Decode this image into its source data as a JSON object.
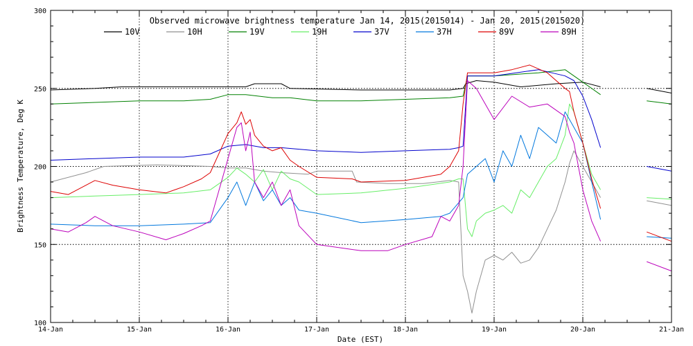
{
  "chart_data": {
    "type": "line",
    "title": "Observed microwave brightness temperature Jan 14, 2015(2015014) - Jan 20, 2015(2015020)",
    "xlabel": "Date (EST)",
    "ylabel": "Brightness Temperature, Deg K",
    "xlim": [
      14,
      21
    ],
    "ylim": [
      100,
      300
    ],
    "x_ticks": [
      {
        "value": 14,
        "label": "14-Jan"
      },
      {
        "value": 15,
        "label": "15-Jan"
      },
      {
        "value": 16,
        "label": "16-Jan"
      },
      {
        "value": 17,
        "label": "17-Jan"
      },
      {
        "value": 18,
        "label": "18-Jan"
      },
      {
        "value": 19,
        "label": "19-Jan"
      },
      {
        "value": 20,
        "label": "20-Jan"
      },
      {
        "value": 21,
        "label": "21-Jan"
      }
    ],
    "y_ticks": [
      {
        "value": 100,
        "label": "100"
      },
      {
        "value": 150,
        "label": "150"
      },
      {
        "value": 200,
        "label": "200"
      },
      {
        "value": 250,
        "label": "250"
      },
      {
        "value": 300,
        "label": "300"
      }
    ],
    "grid": true,
    "legend_position": "top",
    "series": [
      {
        "name": "10V",
        "color": "#000000",
        "points": [
          [
            14.0,
            249
          ],
          [
            14.5,
            250
          ],
          [
            14.8,
            251
          ],
          [
            15.2,
            251
          ],
          [
            15.8,
            251
          ],
          [
            16.2,
            251
          ],
          [
            16.3,
            253
          ],
          [
            16.6,
            253
          ],
          [
            16.7,
            250
          ],
          [
            17.5,
            249
          ],
          [
            18.5,
            249
          ],
          [
            18.65,
            250
          ],
          [
            18.68,
            253
          ],
          [
            18.8,
            255
          ],
          [
            19.0,
            254
          ],
          [
            19.3,
            251
          ],
          [
            19.7,
            253
          ],
          [
            20.0,
            254
          ],
          [
            20.2,
            251
          ],
          null,
          [
            20.72,
            250
          ],
          [
            21.0,
            247
          ]
        ]
      },
      {
        "name": "10H",
        "color": "#909090",
        "points": [
          [
            14.0,
            190
          ],
          [
            14.4,
            196
          ],
          [
            14.6,
            200
          ],
          [
            15.2,
            201
          ],
          [
            15.8,
            200
          ],
          [
            16.0,
            199
          ],
          [
            16.2,
            199
          ],
          [
            16.4,
            197
          ],
          [
            16.6,
            196
          ],
          [
            16.9,
            195
          ],
          [
            17.0,
            197
          ],
          [
            17.4,
            197
          ],
          [
            17.45,
            190
          ],
          [
            17.8,
            189
          ],
          [
            18.2,
            189
          ],
          [
            18.5,
            191
          ],
          [
            18.6,
            190
          ],
          [
            18.65,
            130
          ],
          [
            18.7,
            120
          ],
          [
            18.75,
            106
          ],
          [
            18.8,
            120
          ],
          [
            18.9,
            140
          ],
          [
            19.0,
            143
          ],
          [
            19.1,
            140
          ],
          [
            19.2,
            145
          ],
          [
            19.3,
            138
          ],
          [
            19.4,
            140
          ],
          [
            19.5,
            148
          ],
          [
            19.6,
            160
          ],
          [
            19.7,
            172
          ],
          [
            19.8,
            190
          ],
          [
            19.85,
            202
          ],
          [
            19.9,
            210
          ],
          [
            20.0,
            200
          ],
          [
            20.1,
            190
          ],
          [
            20.2,
            180
          ],
          null,
          [
            20.72,
            178
          ],
          [
            21.0,
            175
          ]
        ]
      },
      {
        "name": "19V",
        "color": "#008000",
        "points": [
          [
            14.0,
            240
          ],
          [
            14.5,
            241
          ],
          [
            15.0,
            242
          ],
          [
            15.5,
            242
          ],
          [
            15.8,
            243
          ],
          [
            16.0,
            246
          ],
          [
            16.2,
            246
          ],
          [
            16.5,
            244
          ],
          [
            16.7,
            244
          ],
          [
            17.0,
            242
          ],
          [
            17.5,
            242
          ],
          [
            18.0,
            243
          ],
          [
            18.5,
            244
          ],
          [
            18.65,
            245
          ],
          [
            18.7,
            258
          ],
          [
            19.0,
            258
          ],
          [
            19.5,
            260
          ],
          [
            19.8,
            262
          ],
          [
            20.0,
            254
          ],
          [
            20.2,
            246
          ],
          null,
          [
            20.72,
            242
          ],
          [
            21.0,
            240
          ]
        ]
      },
      {
        "name": "19H",
        "color": "#66ee66",
        "points": [
          [
            14.0,
            180
          ],
          [
            14.5,
            181
          ],
          [
            15.0,
            182
          ],
          [
            15.5,
            183
          ],
          [
            15.8,
            185
          ],
          [
            16.0,
            193
          ],
          [
            16.1,
            199
          ],
          [
            16.2,
            195
          ],
          [
            16.3,
            190
          ],
          [
            16.4,
            198
          ],
          [
            16.5,
            185
          ],
          [
            16.6,
            197
          ],
          [
            16.7,
            192
          ],
          [
            16.8,
            190
          ],
          [
            17.0,
            182
          ],
          [
            17.5,
            183
          ],
          [
            18.0,
            186
          ],
          [
            18.5,
            190
          ],
          [
            18.6,
            192
          ],
          [
            18.65,
            192
          ],
          [
            18.7,
            160
          ],
          [
            18.75,
            155
          ],
          [
            18.8,
            165
          ],
          [
            18.9,
            170
          ],
          [
            19.0,
            172
          ],
          [
            19.1,
            175
          ],
          [
            19.2,
            170
          ],
          [
            19.3,
            185
          ],
          [
            19.4,
            180
          ],
          [
            19.5,
            190
          ],
          [
            19.6,
            200
          ],
          [
            19.7,
            205
          ],
          [
            19.8,
            220
          ],
          [
            19.85,
            240
          ],
          [
            19.9,
            235
          ],
          [
            20.0,
            215
          ],
          [
            20.1,
            195
          ],
          [
            20.2,
            185
          ],
          null,
          [
            20.72,
            180
          ],
          [
            21.0,
            179
          ]
        ]
      },
      {
        "name": "37V",
        "color": "#0000cc",
        "points": [
          [
            14.0,
            204
          ],
          [
            14.5,
            205
          ],
          [
            15.0,
            206
          ],
          [
            15.5,
            206
          ],
          [
            15.8,
            208
          ],
          [
            16.0,
            213
          ],
          [
            16.2,
            214
          ],
          [
            16.4,
            212
          ],
          [
            16.6,
            212
          ],
          [
            17.0,
            210
          ],
          [
            17.5,
            209
          ],
          [
            18.0,
            210
          ],
          [
            18.5,
            211
          ],
          [
            18.6,
            212
          ],
          [
            18.65,
            213
          ],
          [
            18.7,
            258
          ],
          [
            19.0,
            258
          ],
          [
            19.5,
            262
          ],
          [
            19.8,
            258
          ],
          [
            19.9,
            255
          ],
          [
            20.0,
            245
          ],
          [
            20.1,
            230
          ],
          [
            20.2,
            212
          ],
          null,
          [
            20.72,
            200
          ],
          [
            21.0,
            197
          ]
        ]
      },
      {
        "name": "37H",
        "color": "#0077dd",
        "points": [
          [
            14.0,
            163
          ],
          [
            14.5,
            162
          ],
          [
            15.0,
            162
          ],
          [
            15.5,
            163
          ],
          [
            15.8,
            164
          ],
          [
            16.0,
            180
          ],
          [
            16.1,
            190
          ],
          [
            16.2,
            175
          ],
          [
            16.3,
            190
          ],
          [
            16.4,
            178
          ],
          [
            16.5,
            185
          ],
          [
            16.6,
            175
          ],
          [
            16.7,
            180
          ],
          [
            16.8,
            172
          ],
          [
            17.0,
            170
          ],
          [
            17.5,
            164
          ],
          [
            18.0,
            166
          ],
          [
            18.4,
            168
          ],
          [
            18.5,
            170
          ],
          [
            18.65,
            180
          ],
          [
            18.7,
            195
          ],
          [
            18.8,
            200
          ],
          [
            18.9,
            205
          ],
          [
            19.0,
            190
          ],
          [
            19.1,
            210
          ],
          [
            19.2,
            200
          ],
          [
            19.3,
            220
          ],
          [
            19.4,
            205
          ],
          [
            19.5,
            225
          ],
          [
            19.6,
            220
          ],
          [
            19.7,
            215
          ],
          [
            19.8,
            235
          ],
          [
            19.85,
            230
          ],
          [
            19.9,
            225
          ],
          [
            20.0,
            215
          ],
          [
            20.1,
            190
          ],
          [
            20.2,
            166
          ],
          null,
          [
            20.72,
            155
          ],
          [
            21.0,
            154
          ]
        ]
      },
      {
        "name": "89V",
        "color": "#dd0000",
        "points": [
          [
            14.0,
            184
          ],
          [
            14.2,
            182
          ],
          [
            14.5,
            191
          ],
          [
            14.7,
            188
          ],
          [
            15.0,
            185
          ],
          [
            15.3,
            183
          ],
          [
            15.5,
            187
          ],
          [
            15.7,
            192
          ],
          [
            15.8,
            196
          ],
          [
            16.0,
            221
          ],
          [
            16.1,
            228
          ],
          [
            16.15,
            235
          ],
          [
            16.2,
            227
          ],
          [
            16.25,
            230
          ],
          [
            16.3,
            220
          ],
          [
            16.4,
            213
          ],
          [
            16.5,
            210
          ],
          [
            16.6,
            212
          ],
          [
            16.7,
            204
          ],
          [
            16.8,
            200
          ],
          [
            17.0,
            193
          ],
          [
            17.4,
            192
          ],
          [
            17.5,
            190
          ],
          [
            18.0,
            191
          ],
          [
            18.4,
            195
          ],
          [
            18.5,
            200
          ],
          [
            18.6,
            210
          ],
          [
            18.65,
            240
          ],
          [
            18.7,
            260
          ],
          [
            19.0,
            260
          ],
          [
            19.2,
            262
          ],
          [
            19.4,
            265
          ],
          [
            19.6,
            260
          ],
          [
            19.8,
            250
          ],
          [
            19.85,
            248
          ],
          [
            19.9,
            235
          ],
          [
            20.0,
            215
          ],
          [
            20.1,
            192
          ],
          [
            20.2,
            173
          ],
          null,
          [
            20.72,
            158
          ],
          [
            21.0,
            152
          ]
        ]
      },
      {
        "name": "89H",
        "color": "#bb00bb",
        "points": [
          [
            14.0,
            160
          ],
          [
            14.2,
            158
          ],
          [
            14.4,
            164
          ],
          [
            14.5,
            168
          ],
          [
            14.7,
            162
          ],
          [
            15.0,
            158
          ],
          [
            15.3,
            153
          ],
          [
            15.5,
            157
          ],
          [
            15.7,
            162
          ],
          [
            15.8,
            165
          ],
          [
            16.0,
            205
          ],
          [
            16.1,
            225
          ],
          [
            16.15,
            228
          ],
          [
            16.2,
            210
          ],
          [
            16.25,
            222
          ],
          [
            16.3,
            190
          ],
          [
            16.4,
            180
          ],
          [
            16.5,
            190
          ],
          [
            16.6,
            175
          ],
          [
            16.7,
            185
          ],
          [
            16.8,
            162
          ],
          [
            17.0,
            150
          ],
          [
            17.5,
            146
          ],
          [
            17.8,
            146
          ],
          [
            18.0,
            150
          ],
          [
            18.3,
            155
          ],
          [
            18.4,
            168
          ],
          [
            18.5,
            165
          ],
          [
            18.6,
            175
          ],
          [
            18.65,
            200
          ],
          [
            18.7,
            255
          ],
          [
            18.8,
            250
          ],
          [
            19.0,
            230
          ],
          [
            19.2,
            245
          ],
          [
            19.4,
            238
          ],
          [
            19.6,
            240
          ],
          [
            19.8,
            232
          ],
          [
            19.85,
            222
          ],
          [
            19.9,
            215
          ],
          [
            20.0,
            185
          ],
          [
            20.1,
            165
          ],
          [
            20.2,
            152
          ],
          null,
          [
            20.72,
            139
          ],
          [
            21.0,
            133
          ]
        ]
      }
    ]
  }
}
